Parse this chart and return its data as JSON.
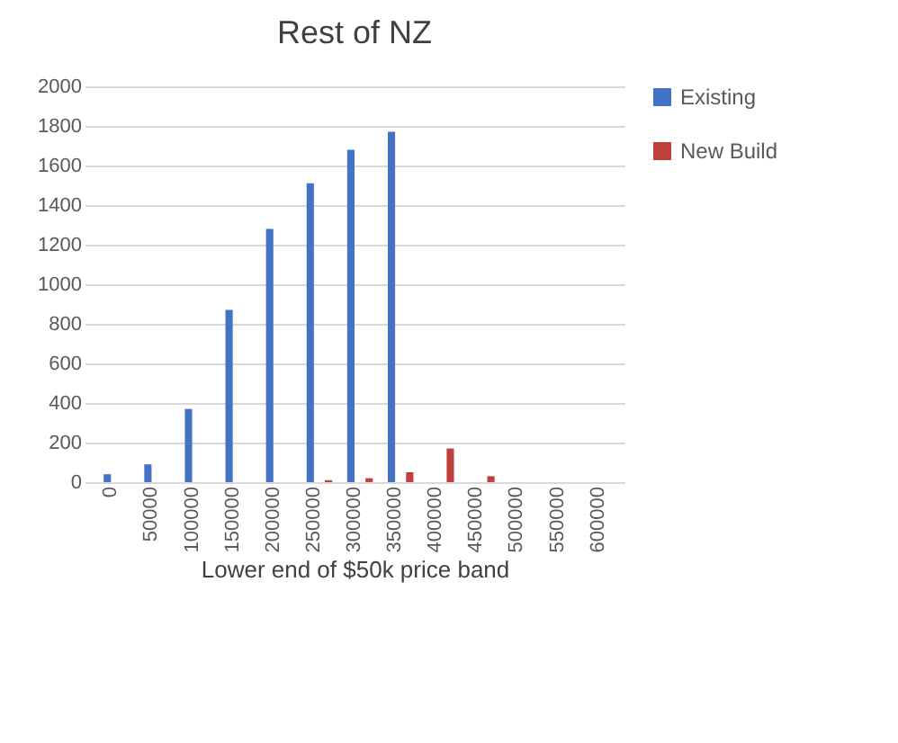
{
  "chart_data": {
    "type": "bar",
    "title": "Rest of NZ",
    "xlabel": "Lower end of $50k price band",
    "categories": [
      "0",
      "50000",
      "100000",
      "150000",
      "200000",
      "250000",
      "300000",
      "350000",
      "400000",
      "450000",
      "500000",
      "550000",
      "600000"
    ],
    "series": [
      {
        "name": "Existing",
        "color": "#4472c4",
        "values": [
          40,
          90,
          370,
          870,
          1280,
          1510,
          1680,
          1770,
          0,
          0,
          0,
          0,
          0
        ]
      },
      {
        "name": "New Build",
        "color": "#c0403c",
        "values": [
          0,
          0,
          0,
          0,
          0,
          10,
          20,
          50,
          170,
          30,
          0,
          0,
          0
        ]
      }
    ],
    "ylim": [
      0,
      2000
    ],
    "yticks": [
      0,
      200,
      400,
      600,
      800,
      1000,
      1200,
      1400,
      1600,
      1800,
      2000
    ],
    "grid": "y",
    "legend": "right"
  }
}
